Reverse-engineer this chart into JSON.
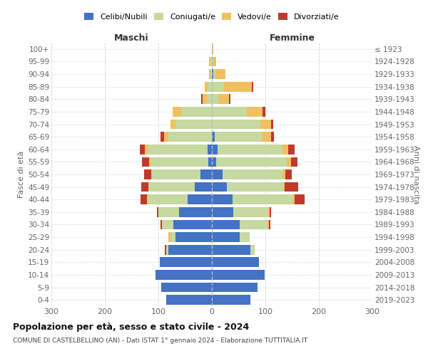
{
  "age_groups": [
    "0-4",
    "5-9",
    "10-14",
    "15-19",
    "20-24",
    "25-29",
    "30-34",
    "35-39",
    "40-44",
    "45-49",
    "50-54",
    "55-59",
    "60-64",
    "65-69",
    "70-74",
    "75-79",
    "80-84",
    "85-89",
    "90-94",
    "95-99",
    "100+"
  ],
  "birth_years": [
    "2019-2023",
    "2014-2018",
    "2009-2013",
    "2004-2008",
    "1999-2003",
    "1994-1998",
    "1989-1993",
    "1984-1988",
    "1979-1983",
    "1974-1978",
    "1969-1973",
    "1964-1968",
    "1959-1963",
    "1954-1958",
    "1949-1953",
    "1944-1948",
    "1939-1943",
    "1934-1938",
    "1929-1933",
    "1924-1928",
    "≤ 1923"
  ],
  "male_celibe": [
    85,
    95,
    105,
    97,
    82,
    68,
    72,
    62,
    45,
    32,
    22,
    7,
    8,
    0,
    0,
    0,
    0,
    0,
    0,
    0,
    0
  ],
  "male_coniugato": [
    0,
    0,
    0,
    0,
    4,
    10,
    22,
    38,
    75,
    85,
    90,
    108,
    112,
    82,
    68,
    58,
    10,
    8,
    3,
    3,
    0
  ],
  "male_vedovo": [
    0,
    0,
    0,
    0,
    0,
    3,
    0,
    0,
    2,
    2,
    2,
    3,
    5,
    8,
    10,
    15,
    8,
    5,
    3,
    2,
    0
  ],
  "male_divorziato": [
    0,
    0,
    0,
    0,
    2,
    0,
    2,
    3,
    12,
    13,
    13,
    13,
    10,
    6,
    0,
    0,
    2,
    0,
    0,
    0,
    0
  ],
  "female_celibe": [
    72,
    85,
    98,
    88,
    72,
    52,
    52,
    40,
    38,
    28,
    20,
    8,
    10,
    5,
    0,
    0,
    0,
    0,
    2,
    0,
    0
  ],
  "female_coniugato": [
    0,
    0,
    0,
    0,
    8,
    18,
    52,
    65,
    112,
    105,
    112,
    132,
    122,
    88,
    90,
    65,
    12,
    22,
    5,
    2,
    0
  ],
  "female_vedovo": [
    0,
    0,
    0,
    0,
    0,
    0,
    2,
    3,
    5,
    3,
    5,
    8,
    10,
    18,
    20,
    30,
    20,
    52,
    18,
    6,
    2
  ],
  "female_divorziato": [
    0,
    0,
    0,
    0,
    0,
    0,
    3,
    3,
    18,
    25,
    12,
    12,
    12,
    5,
    5,
    5,
    2,
    3,
    0,
    0,
    0
  ],
  "color_celibe": "#4472c4",
  "color_coniugato": "#c5d9a0",
  "color_vedovo": "#f0c060",
  "color_divorziato": "#c0392b",
  "title": "Popolazione per età, sesso e stato civile - 2024",
  "subtitle": "COMUNE DI CASTELBELLINO (AN) - Dati ISTAT 1° gennaio 2024 - Elaborazione TUTTITALIA.IT",
  "xlabel_left": "Maschi",
  "xlabel_right": "Femmine",
  "ylabel_left": "Fasce di età",
  "ylabel_right": "Anni di nascita",
  "xlim": 300,
  "bg_color": "#ffffff",
  "grid_color": "#cccccc"
}
